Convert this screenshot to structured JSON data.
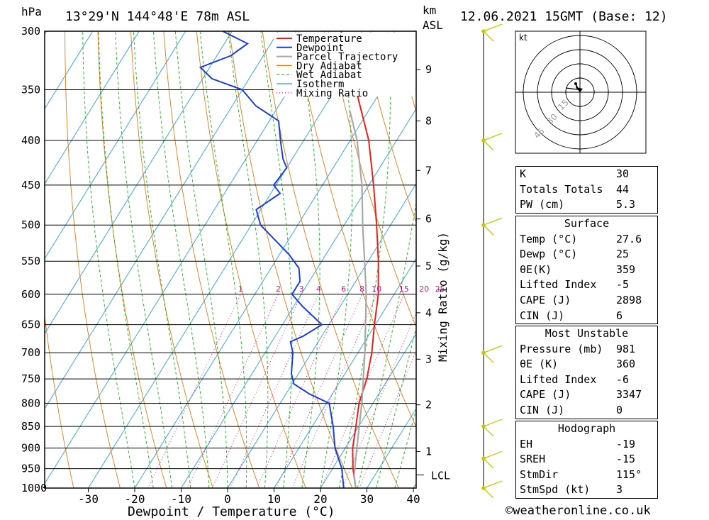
{
  "header": {
    "location": "13°29'N 144°48'E 78m ASL",
    "datetime": "12.06.2021 15GMT (Base: 12)",
    "pressure_unit": "hPa",
    "height_unit_1": "km",
    "height_unit_2": "ASL"
  },
  "chart_data": {
    "type": "line",
    "xlabel": "Dewpoint / Temperature (°C)",
    "ylabel": "hPa",
    "right_axis_label": "Mixing Ratio (g/kg)",
    "x_ticks": [
      -30,
      -20,
      -10,
      0,
      10,
      20,
      30,
      40
    ],
    "pressure_levels": [
      300,
      350,
      400,
      450,
      500,
      550,
      600,
      650,
      700,
      750,
      800,
      850,
      900,
      950,
      1000
    ],
    "km_ticks": [
      {
        "km": "1",
        "p": 908
      },
      {
        "km": "2",
        "p": 803
      },
      {
        "km": "3",
        "p": 712
      },
      {
        "km": "4",
        "p": 630
      },
      {
        "km": "5",
        "p": 557
      },
      {
        "km": "6",
        "p": 492
      },
      {
        "km": "7",
        "p": 433
      },
      {
        "km": "8",
        "p": 380
      },
      {
        "km": "9",
        "p": 332
      }
    ],
    "lcl_label": "LCL",
    "lcl_pressure": 966,
    "mixing_ratio_labels": [
      "1",
      "2",
      "3",
      "4",
      "6",
      "8",
      "10",
      "15",
      "20",
      "25"
    ],
    "legend": [
      "Temperature",
      "Dewpoint",
      "Parcel Trajectory",
      "Dry Adiabat",
      "Wet Adiabat",
      "Isotherm",
      "Mixing Ratio"
    ],
    "colors": {
      "temperature": "#e8201a",
      "dewpoint": "#1a3fd8",
      "parcel": "#a8a8a8",
      "dry_adiabat": "#e27b16",
      "wet_adiabat": "#22b222",
      "isotherm": "#2a9be0",
      "mixing_ratio": "#c21e8a",
      "wind": "#c8c800"
    },
    "series": [
      {
        "name": "Temperature",
        "values": [
          [
            1000,
            27.6
          ],
          [
            950,
            24.4
          ],
          [
            900,
            21.6
          ],
          [
            850,
            19.4
          ],
          [
            800,
            17.0
          ],
          [
            750,
            15.4
          ],
          [
            700,
            13.0
          ],
          [
            650,
            9.8
          ],
          [
            600,
            6.6
          ],
          [
            550,
            2.2
          ],
          [
            500,
            -3.0
          ],
          [
            450,
            -9.0
          ],
          [
            400,
            -16.0
          ],
          [
            350,
            -25.5
          ],
          [
            300,
            -36.5
          ]
        ]
      },
      {
        "name": "Dewpoint",
        "values": [
          [
            1000,
            25.0
          ],
          [
            950,
            22.0
          ],
          [
            900,
            17.8
          ],
          [
            850,
            14.5
          ],
          [
            800,
            10.6
          ],
          [
            780,
            5.0
          ],
          [
            760,
            0.4
          ],
          [
            740,
            -1.5
          ],
          [
            700,
            -4.0
          ],
          [
            680,
            -6.0
          ],
          [
            670,
            -4.0
          ],
          [
            650,
            -1.5
          ],
          [
            620,
            -8.0
          ],
          [
            600,
            -12.0
          ],
          [
            580,
            -12.0
          ],
          [
            560,
            -14.0
          ],
          [
            540,
            -18.0
          ],
          [
            500,
            -28.0
          ],
          [
            480,
            -31.0
          ],
          [
            460,
            -28.0
          ],
          [
            450,
            -30.5
          ],
          [
            430,
            -30.0
          ],
          [
            420,
            -32.0
          ],
          [
            400,
            -35.0
          ],
          [
            380,
            -38.0
          ],
          [
            365,
            -45.0
          ],
          [
            350,
            -50.0
          ],
          [
            340,
            -58.0
          ],
          [
            330,
            -62.0
          ],
          [
            320,
            -57.0
          ],
          [
            310,
            -55.0
          ],
          [
            300,
            -62.0
          ]
        ]
      },
      {
        "name": "Parcel Trajectory",
        "values": [
          [
            1000,
            27.6
          ],
          [
            966,
            25.5
          ],
          [
            900,
            22.5
          ],
          [
            800,
            17.6
          ],
          [
            700,
            11.5
          ],
          [
            600,
            4.0
          ],
          [
            500,
            -6.0
          ],
          [
            450,
            -11.5
          ],
          [
            400,
            -18.5
          ],
          [
            370,
            -24.0
          ]
        ]
      }
    ],
    "wind_barbs_pressures": [
      300,
      400,
      500,
      700,
      850,
      925,
      1000
    ]
  },
  "hodograph": {
    "unit": "kt",
    "ring_labels": [
      "15",
      "30",
      "45"
    ]
  },
  "indices": {
    "K": {
      "label": "K",
      "value": "30"
    },
    "TT": {
      "label": "Totals Totals",
      "value": "44"
    },
    "PW": {
      "label": "PW (cm)",
      "value": "5.3"
    }
  },
  "surface": {
    "title": "Surface",
    "rows": [
      {
        "label": "Temp (°C)",
        "value": "27.6"
      },
      {
        "label": "Dewp (°C)",
        "value": "25"
      },
      {
        "label": "θE(K)",
        "value": "359"
      },
      {
        "label": "Lifted Index",
        "value": "-5"
      },
      {
        "label": "CAPE (J)",
        "value": "2898"
      },
      {
        "label": "CIN (J)",
        "value": "6"
      }
    ]
  },
  "most_unstable": {
    "title": "Most Unstable",
    "rows": [
      {
        "label": "Pressure (mb)",
        "value": "981"
      },
      {
        "label": "θE (K)",
        "value": "360"
      },
      {
        "label": "Lifted Index",
        "value": "-6"
      },
      {
        "label": "CAPE (J)",
        "value": "3347"
      },
      {
        "label": "CIN (J)",
        "value": "0"
      }
    ]
  },
  "hodograph_table": {
    "title": "Hodograph",
    "rows": [
      {
        "label": "EH",
        "value": "-19"
      },
      {
        "label": "SREH",
        "value": "-15"
      },
      {
        "label": "StmDir",
        "value": "115°"
      },
      {
        "label": "StmSpd (kt)",
        "value": "3"
      }
    ]
  },
  "footer": {
    "copyright": "©weatheronline.co.uk"
  }
}
